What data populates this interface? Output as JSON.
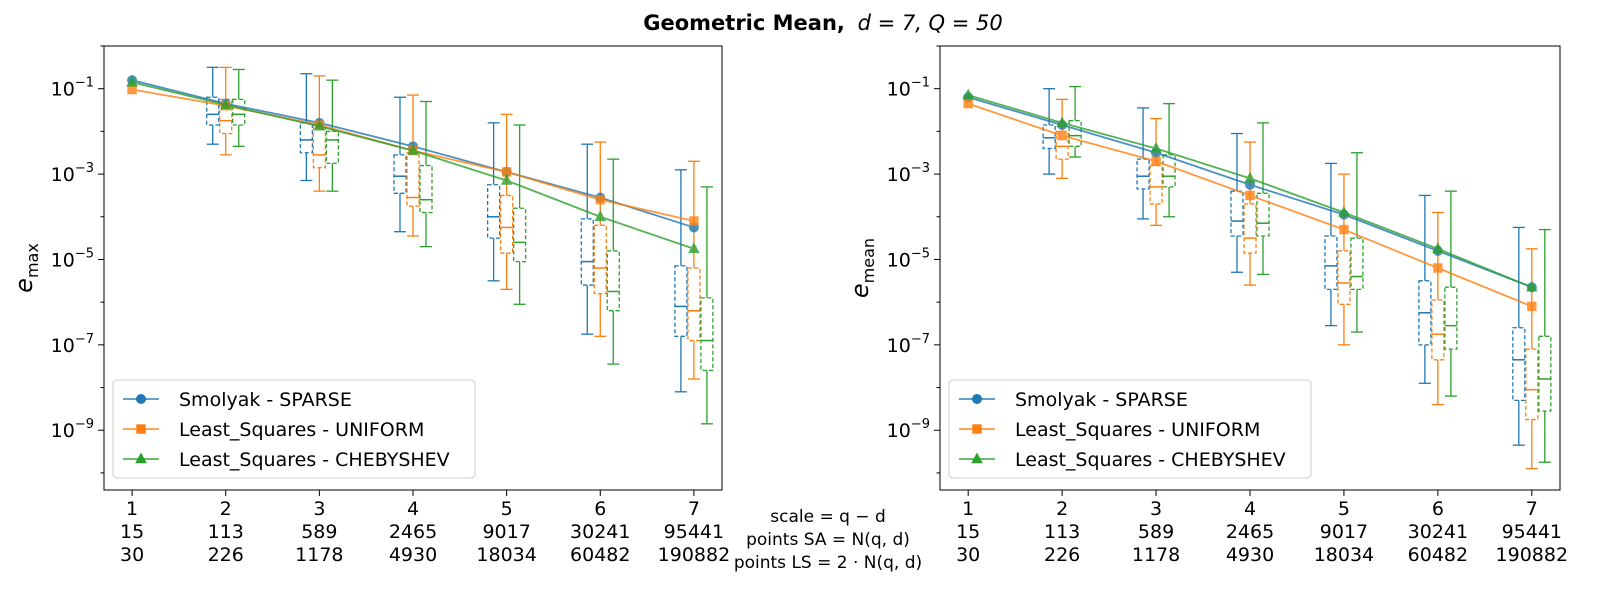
{
  "figure": {
    "title_bold": "Geometric Mean,",
    "title_math": "d = 7, Q = 50",
    "center_labels": [
      "scale = q − d",
      "points SA = N(q, d)",
      "points LS = 2 · N(q, d)"
    ]
  },
  "colors": {
    "smolyak": "#1f77b4",
    "ls_uniform": "#ff7f0e",
    "ls_cheb": "#2ca02c"
  },
  "chart_data": [
    {
      "type": "box-line",
      "ylabel_base": "e",
      "ylabel_sub": "max",
      "yscale": "log",
      "ylim": [
        -10.4,
        -0.0
      ],
      "x_ticks_row1": [
        "1",
        "2",
        "3",
        "4",
        "5",
        "6",
        "7"
      ],
      "x_ticks_row2": [
        "15",
        "113",
        "589",
        "2465",
        "9017",
        "30241",
        "95441"
      ],
      "x_ticks_row3": [
        "30",
        "226",
        "1178",
        "4930",
        "18034",
        "60482",
        "190882"
      ],
      "y_ticks": [
        -1,
        -3,
        -5,
        -7,
        -9
      ],
      "legend": {
        "placement": "lower-left",
        "entries": [
          "Smolyak - SPARSE",
          "Least_Squares - UNIFORM",
          "Least_Squares - CHEBYSHEV"
        ]
      },
      "series": [
        {
          "name": "Smolyak - SPARSE",
          "marker": "circle",
          "x": [
            1,
            2,
            3,
            4,
            5,
            6,
            7
          ],
          "log10_y": [
            -0.8,
            -1.35,
            -1.8,
            -2.35,
            -2.95,
            -3.55,
            -4.25
          ]
        },
        {
          "name": "Least_Squares - UNIFORM",
          "marker": "square",
          "x": [
            1,
            2,
            3,
            4,
            5,
            6,
            7
          ],
          "log10_y": [
            -1.02,
            -1.4,
            -1.85,
            -2.45,
            -2.95,
            -3.6,
            -4.1
          ]
        },
        {
          "name": "Least_Squares - CHEBYSHEV",
          "marker": "triangle",
          "x": [
            1,
            2,
            3,
            4,
            5,
            6,
            7
          ],
          "log10_y": [
            -0.85,
            -1.38,
            -1.88,
            -2.45,
            -3.15,
            -4.0,
            -4.75
          ]
        }
      ],
      "boxes": [
        {
          "series": 0,
          "x": [
            2,
            3,
            4,
            5,
            6,
            7
          ],
          "whisker_hi": [
            -0.5,
            -0.65,
            -1.2,
            -1.8,
            -2.3,
            -2.9
          ],
          "q3": [
            -1.2,
            -1.8,
            -2.55,
            -3.25,
            -4.05,
            -5.15
          ],
          "median": [
            -1.6,
            -2.2,
            -3.05,
            -4.0,
            -5.05,
            -6.1
          ],
          "q1": [
            -1.85,
            -2.5,
            -3.45,
            -4.5,
            -5.6,
            -6.8
          ],
          "whisker_lo": [
            -2.3,
            -3.15,
            -4.35,
            -5.5,
            -6.75,
            -8.1
          ]
        },
        {
          "series": 1,
          "x": [
            2,
            3,
            4,
            5,
            6,
            7
          ],
          "whisker_hi": [
            -0.5,
            -0.7,
            -1.15,
            -1.6,
            -2.25,
            -2.7
          ],
          "q3": [
            -1.25,
            -1.85,
            -2.5,
            -3.5,
            -4.2,
            -5.2
          ],
          "median": [
            -1.75,
            -2.55,
            -3.55,
            -4.25,
            -5.2,
            -6.2
          ],
          "q1": [
            -2.05,
            -2.85,
            -3.75,
            -4.85,
            -5.8,
            -6.9
          ],
          "whisker_lo": [
            -2.55,
            -3.4,
            -4.45,
            -5.7,
            -6.8,
            -7.8
          ]
        },
        {
          "series": 2,
          "x": [
            2,
            3,
            4,
            5,
            6,
            7
          ],
          "whisker_hi": [
            -0.55,
            -0.8,
            -1.3,
            -1.85,
            -2.65,
            -3.3
          ],
          "q3": [
            -1.25,
            -2.0,
            -2.8,
            -3.8,
            -4.8,
            -5.9
          ],
          "median": [
            -1.6,
            -2.2,
            -3.6,
            -4.6,
            -5.75,
            -6.9
          ],
          "q1": [
            -1.85,
            -2.75,
            -3.9,
            -5.05,
            -6.2,
            -7.6
          ],
          "whisker_lo": [
            -2.35,
            -3.4,
            -4.7,
            -6.05,
            -7.45,
            -8.85
          ]
        }
      ]
    },
    {
      "type": "box-line",
      "ylabel_base": "e",
      "ylabel_sub": "mean",
      "yscale": "log",
      "ylim": [
        -10.4,
        -0.0
      ],
      "x_ticks_row1": [
        "1",
        "2",
        "3",
        "4",
        "5",
        "6",
        "7"
      ],
      "x_ticks_row2": [
        "15",
        "113",
        "589",
        "2465",
        "9017",
        "30241",
        "95441"
      ],
      "x_ticks_row3": [
        "30",
        "226",
        "1178",
        "4930",
        "18034",
        "60482",
        "190882"
      ],
      "y_ticks": [
        -1,
        -3,
        -5,
        -7,
        -9
      ],
      "legend": {
        "placement": "lower-left",
        "entries": [
          "Smolyak - SPARSE",
          "Least_Squares - UNIFORM",
          "Least_Squares - CHEBYSHEV"
        ]
      },
      "series": [
        {
          "name": "Smolyak - SPARSE",
          "marker": "circle",
          "x": [
            1,
            2,
            3,
            4,
            5,
            6,
            7
          ],
          "log10_y": [
            -1.2,
            -1.85,
            -2.5,
            -3.25,
            -3.95,
            -4.8,
            -5.65
          ]
        },
        {
          "name": "Least_Squares - UNIFORM",
          "marker": "square",
          "x": [
            1,
            2,
            3,
            4,
            5,
            6,
            7
          ],
          "log10_y": [
            -1.35,
            -2.1,
            -2.7,
            -3.5,
            -4.3,
            -5.2,
            -6.1
          ]
        },
        {
          "name": "Least_Squares - CHEBYSHEV",
          "marker": "triangle",
          "x": [
            1,
            2,
            3,
            4,
            5,
            6,
            7
          ],
          "log10_y": [
            -1.15,
            -1.8,
            -2.4,
            -3.1,
            -3.9,
            -4.75,
            -5.65
          ]
        }
      ],
      "boxes": [
        {
          "series": 0,
          "x": [
            2,
            3,
            4,
            5,
            6,
            7
          ],
          "whisker_hi": [
            -1.0,
            -1.45,
            -2.05,
            -2.75,
            -3.5,
            -4.25
          ],
          "q3": [
            -1.85,
            -2.65,
            -3.4,
            -4.45,
            -5.5,
            -6.6
          ],
          "median": [
            -2.15,
            -3.05,
            -4.1,
            -5.15,
            -6.25,
            -7.35
          ],
          "q1": [
            -2.4,
            -3.35,
            -4.45,
            -5.7,
            -7.0,
            -8.3
          ],
          "whisker_lo": [
            -3.0,
            -4.05,
            -5.3,
            -6.55,
            -7.9,
            -9.35
          ]
        },
        {
          "series": 1,
          "x": [
            2,
            3,
            4,
            5,
            6,
            7
          ],
          "whisker_hi": [
            -1.25,
            -1.7,
            -2.25,
            -3.0,
            -3.9,
            -4.75
          ],
          "q3": [
            -2.0,
            -2.8,
            -3.7,
            -4.8,
            -5.95,
            -7.1
          ],
          "median": [
            -2.35,
            -3.3,
            -4.5,
            -5.55,
            -6.75,
            -8.05
          ],
          "q1": [
            -2.65,
            -3.7,
            -4.85,
            -6.05,
            -7.35,
            -8.75
          ],
          "whisker_lo": [
            -3.1,
            -4.2,
            -5.6,
            -7.0,
            -8.4,
            -9.9
          ]
        },
        {
          "series": 2,
          "x": [
            2,
            3,
            4,
            5,
            6,
            7
          ],
          "whisker_hi": [
            -0.95,
            -1.35,
            -1.8,
            -2.5,
            -3.4,
            -4.3
          ],
          "q3": [
            -1.75,
            -2.55,
            -3.45,
            -4.5,
            -5.65,
            -6.8
          ],
          "median": [
            -2.1,
            -3.05,
            -4.15,
            -5.4,
            -6.55,
            -7.8
          ],
          "q1": [
            -2.35,
            -3.3,
            -4.45,
            -5.7,
            -7.1,
            -8.55
          ],
          "whisker_lo": [
            -2.6,
            -4.0,
            -5.35,
            -6.7,
            -8.2,
            -9.75
          ]
        }
      ]
    }
  ]
}
